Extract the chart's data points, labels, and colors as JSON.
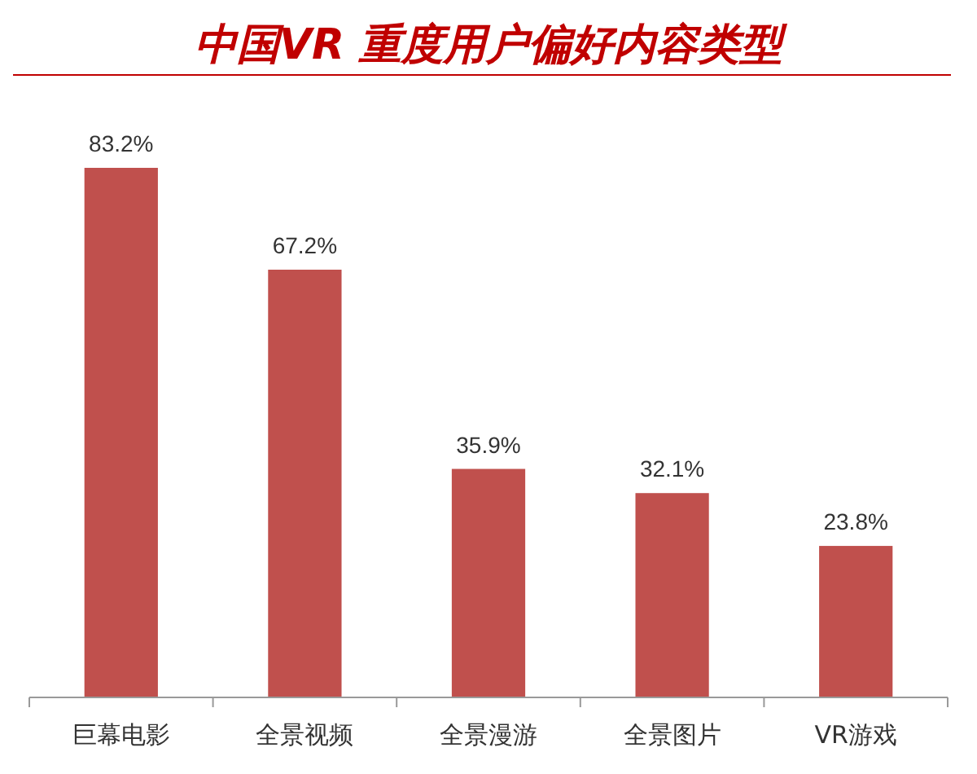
{
  "chart_data": {
    "type": "bar",
    "title": "中国VR 重度用户偏好内容类型",
    "categories": [
      "巨幕电影",
      "全景视频",
      "全景漫游",
      "全景图片",
      "VR游戏"
    ],
    "values": [
      83.2,
      67.2,
      35.9,
      32.1,
      23.8
    ],
    "value_labels": [
      "83.2%",
      "67.2%",
      "35.9%",
      "32.1%",
      "23.8%"
    ],
    "color": "#c0504d"
  }
}
